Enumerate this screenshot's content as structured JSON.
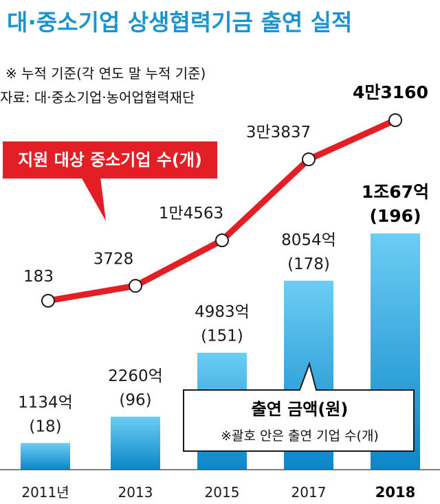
{
  "title": "대·중소기업 상생협력기금 출연 실적",
  "notes": [
    "※ 누적 기준(각 연도 말 누적 기준)",
    "자료: 대·중소기업·농어업협력재단"
  ],
  "colors": {
    "title": "#1b93d0",
    "bar_top": "#6ccdf4",
    "bar_bottom": "#0b86c8",
    "line": "#e31e24",
    "legend_line_bg": "#e31e24"
  },
  "chart_data": {
    "type": "bar",
    "categories": [
      "2011년",
      "2013",
      "2015",
      "2017",
      "2018"
    ],
    "highlight_category": "2018",
    "series": [
      {
        "name": "출연 금액(원)",
        "type": "bar",
        "values": [
          1134,
          2260,
          4983,
          8054,
          10067
        ],
        "labels": [
          "1134억",
          "2260억",
          "4983억",
          "8054억",
          "1조67억"
        ],
        "sublabels": [
          "(18)",
          "(96)",
          "(151)",
          "(178)",
          "(196)"
        ],
        "companies": [
          18,
          96,
          151,
          178,
          196
        ]
      },
      {
        "name": "지원 대상 중소기업 수(개)",
        "type": "line",
        "values": [
          183,
          3728,
          14563,
          33837,
          43160
        ],
        "labels": [
          "183",
          "3728",
          "1만4563",
          "3만3837",
          "4만3160"
        ]
      }
    ],
    "legend": {
      "line_label": "지원 대상 중소기업 수(개)",
      "bar_label": "출연 금액(원)",
      "bar_note": "※괄호 안은 출연 기업 수(개)"
    }
  }
}
